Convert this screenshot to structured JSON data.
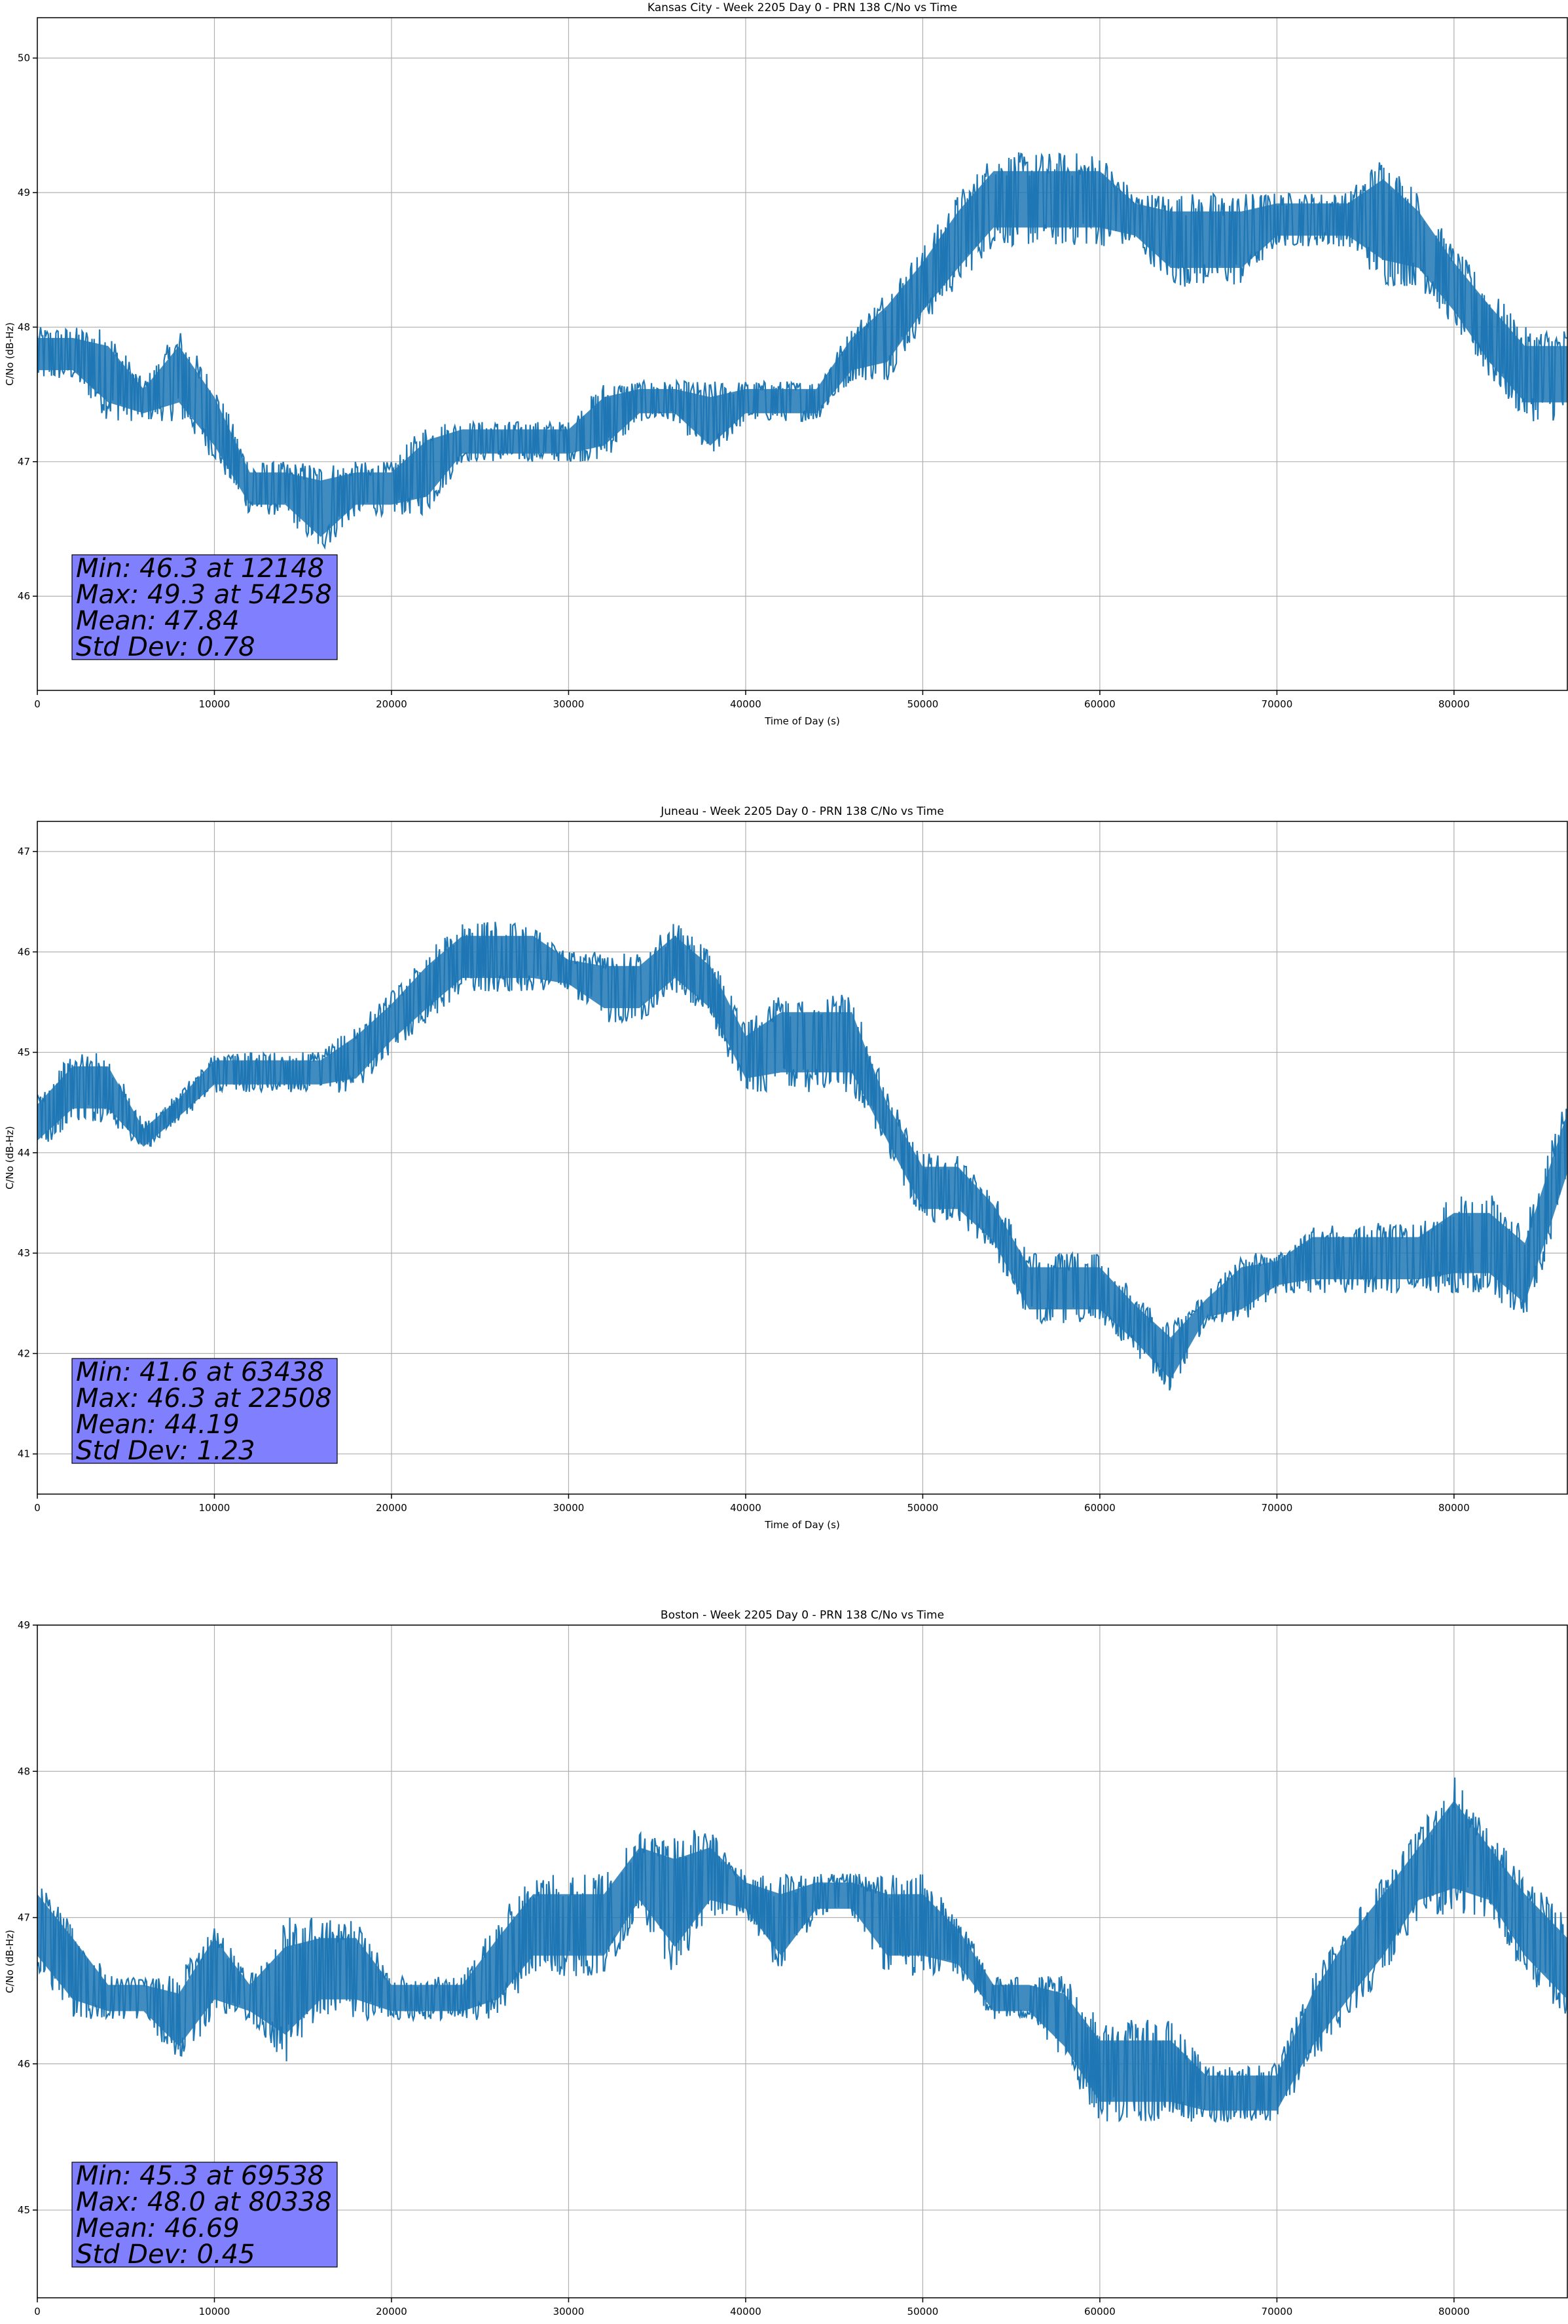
{
  "chart_data": [
    {
      "type": "line",
      "title": "Kansas City - Week 2205 Day 0 - PRN 138 C/No vs Time",
      "xlabel": "Time of Day (s)",
      "ylabel": "C/No (dB-Hz)",
      "xlim": [
        0,
        86400
      ],
      "ylim": [
        45.3,
        50.3
      ],
      "xticks": [
        0,
        10000,
        20000,
        30000,
        40000,
        50000,
        60000,
        70000,
        80000
      ],
      "yticks": [
        46,
        47,
        48,
        49,
        50
      ],
      "grid": true,
      "line_color": "#1f77b4",
      "series": [
        {
          "x": [
            0,
            2000,
            4000,
            6000,
            8000,
            10000,
            12000,
            14000,
            16000,
            18000,
            20000,
            22000,
            24000,
            26000,
            28000,
            30000,
            32000,
            34000,
            36000,
            38000,
            40000,
            42000,
            44000,
            46000,
            48000,
            50000,
            52000,
            54000,
            56000,
            58000,
            60000,
            62000,
            64000,
            66000,
            68000,
            70000,
            72000,
            74000,
            76000,
            78000,
            80000,
            82000,
            84000,
            86400
          ],
          "y_low": [
            47.6,
            47.6,
            47.3,
            47.3,
            47.3,
            47.0,
            46.6,
            46.6,
            46.3,
            46.6,
            46.6,
            46.6,
            47.0,
            47.0,
            47.0,
            47.0,
            47.0,
            47.3,
            47.3,
            47.0,
            47.3,
            47.3,
            47.3,
            47.6,
            47.6,
            48.0,
            48.3,
            48.6,
            48.6,
            48.6,
            48.6,
            48.6,
            48.3,
            48.3,
            48.3,
            48.6,
            48.6,
            48.6,
            48.3,
            48.3,
            48.0,
            47.6,
            47.3,
            47.3
          ],
          "y_high": [
            48.0,
            48.0,
            48.0,
            47.6,
            48.0,
            47.6,
            47.0,
            47.0,
            47.0,
            47.0,
            47.0,
            47.3,
            47.3,
            47.3,
            47.3,
            47.3,
            47.6,
            47.6,
            47.6,
            47.6,
            47.6,
            47.6,
            47.6,
            48.0,
            48.3,
            48.6,
            49.0,
            49.3,
            49.3,
            49.3,
            49.3,
            49.0,
            49.0,
            49.0,
            49.0,
            49.0,
            49.0,
            49.0,
            49.3,
            49.0,
            48.6,
            48.3,
            48.0,
            48.0
          ]
        }
      ],
      "annotation": [
        "Min: 46.3 at 12148",
        "Max: 49.3 at 54258",
        "Mean: 47.84",
        "Std Dev: 0.78"
      ],
      "annotation_bg": "#8080ff"
    },
    {
      "type": "line",
      "title": "Juneau - Week 2205 Day 0 - PRN 138 C/No vs Time",
      "xlabel": "Time of Day (s)",
      "ylabel": "C/No (dB-Hz)",
      "xlim": [
        0,
        86400
      ],
      "ylim": [
        40.6,
        47.3
      ],
      "xticks": [
        0,
        10000,
        20000,
        30000,
        40000,
        50000,
        60000,
        70000,
        80000
      ],
      "yticks": [
        41,
        42,
        43,
        44,
        45,
        46,
        47
      ],
      "grid": true,
      "line_color": "#1f77b4",
      "series": [
        {
          "x": [
            0,
            2000,
            4000,
            6000,
            8000,
            10000,
            12000,
            14000,
            16000,
            18000,
            20000,
            22000,
            24000,
            26000,
            28000,
            30000,
            32000,
            34000,
            36000,
            38000,
            40000,
            42000,
            44000,
            46000,
            48000,
            50000,
            52000,
            54000,
            56000,
            58000,
            60000,
            62000,
            64000,
            66000,
            68000,
            70000,
            72000,
            74000,
            76000,
            78000,
            80000,
            82000,
            84000,
            86400
          ],
          "y_low": [
            44.0,
            44.3,
            44.3,
            44.0,
            44.3,
            44.6,
            44.6,
            44.6,
            44.6,
            44.6,
            45.0,
            45.3,
            45.6,
            45.6,
            45.6,
            45.6,
            45.3,
            45.3,
            45.6,
            45.3,
            44.6,
            44.6,
            44.6,
            44.6,
            44.0,
            43.3,
            43.3,
            43.0,
            42.3,
            42.3,
            42.3,
            42.0,
            41.6,
            42.3,
            42.3,
            42.6,
            42.6,
            42.6,
            42.6,
            42.6,
            42.6,
            42.6,
            42.3,
            43.6
          ],
          "y_high": [
            44.6,
            45.0,
            45.0,
            44.3,
            44.6,
            45.0,
            45.0,
            45.0,
            45.0,
            45.3,
            45.6,
            46.0,
            46.3,
            46.3,
            46.3,
            46.0,
            46.0,
            46.0,
            46.3,
            46.0,
            45.3,
            45.6,
            45.6,
            45.6,
            44.6,
            44.0,
            44.0,
            43.6,
            43.0,
            43.0,
            43.0,
            42.6,
            42.3,
            42.6,
            43.0,
            43.0,
            43.3,
            43.3,
            43.3,
            43.3,
            43.6,
            43.6,
            43.3,
            44.6
          ]
        }
      ],
      "annotation": [
        "Min: 41.6 at 63438",
        "Max: 46.3 at 22508",
        "Mean: 44.19",
        "Std Dev: 1.23"
      ],
      "annotation_bg": "#8080ff"
    },
    {
      "type": "line",
      "title": "Boston - Week 2205 Day 0 - PRN 138 C/No vs Time",
      "xlabel": "Time of Day (s)",
      "ylabel": "C/No (dB-Hz)",
      "xlim": [
        0,
        86400
      ],
      "ylim": [
        44.4,
        49.0
      ],
      "xticks": [
        0,
        10000,
        20000,
        30000,
        40000,
        50000,
        60000,
        70000,
        80000
      ],
      "yticks": [
        45,
        46,
        47,
        48,
        49
      ],
      "grid": true,
      "line_color": "#1f77b4",
      "series": [
        {
          "x": [
            0,
            2000,
            4000,
            6000,
            8000,
            10000,
            12000,
            14000,
            16000,
            18000,
            20000,
            22000,
            24000,
            26000,
            28000,
            30000,
            32000,
            34000,
            36000,
            38000,
            40000,
            42000,
            44000,
            46000,
            48000,
            50000,
            52000,
            54000,
            56000,
            58000,
            60000,
            62000,
            64000,
            66000,
            68000,
            70000,
            72000,
            74000,
            76000,
            78000,
            80000,
            82000,
            84000,
            86400
          ],
          "y_low": [
            46.6,
            46.3,
            46.3,
            46.3,
            46.0,
            46.3,
            46.3,
            46.0,
            46.3,
            46.3,
            46.3,
            46.3,
            46.3,
            46.3,
            46.6,
            46.6,
            46.6,
            47.0,
            46.6,
            47.0,
            47.0,
            46.6,
            47.0,
            47.0,
            46.6,
            46.6,
            46.6,
            46.3,
            46.3,
            46.0,
            45.6,
            45.6,
            45.6,
            45.6,
            45.6,
            45.6,
            46.0,
            46.3,
            46.6,
            47.0,
            47.0,
            47.0,
            46.6,
            46.3
          ],
          "y_high": [
            47.3,
            47.0,
            46.6,
            46.6,
            46.6,
            47.0,
            46.6,
            47.0,
            47.0,
            47.0,
            46.6,
            46.6,
            46.6,
            47.0,
            47.3,
            47.3,
            47.3,
            47.6,
            47.6,
            47.6,
            47.3,
            47.3,
            47.3,
            47.3,
            47.3,
            47.3,
            47.0,
            46.6,
            46.6,
            46.6,
            46.3,
            46.3,
            46.3,
            46.0,
            46.0,
            46.0,
            46.6,
            47.0,
            47.3,
            47.6,
            48.0,
            47.6,
            47.3,
            47.0
          ]
        }
      ],
      "annotation": [
        "Min: 45.3 at 69538",
        "Max: 48.0 at 80338",
        "Mean: 46.69",
        "Std Dev: 0.45"
      ],
      "annotation_bg": "#8080ff"
    }
  ]
}
